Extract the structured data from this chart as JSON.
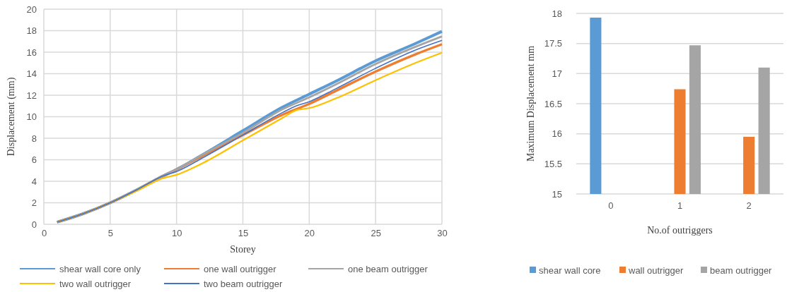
{
  "chart_data": [
    {
      "type": "line",
      "xlabel": "Storey",
      "ylabel": "Displacement (mm)",
      "xlim": [
        0,
        30
      ],
      "xticks": [
        0,
        5,
        10,
        15,
        20,
        25,
        30
      ],
      "ylim": [
        0,
        20
      ],
      "yticks": [
        0,
        2,
        4,
        6,
        8,
        10,
        12,
        14,
        16,
        18,
        20
      ],
      "grid": true,
      "legend": "bottom",
      "line_style": "solid",
      "marker": "none",
      "series": [
        {
          "name": "shear wall core only",
          "color": "#5b9bd5",
          "x": [
            1,
            3,
            5,
            7,
            9,
            10,
            12,
            15,
            18,
            20,
            22,
            25,
            28,
            30
          ],
          "values": [
            0.2,
            1.0,
            2.0,
            3.2,
            4.5,
            5.1,
            6.5,
            8.7,
            10.9,
            12.1,
            13.3,
            15.2,
            16.8,
            17.93
          ]
        },
        {
          "name": "one wall outrigger",
          "color": "#ed7d31",
          "x": [
            1,
            3,
            5,
            7,
            9,
            10,
            12,
            15,
            18,
            20,
            22,
            25,
            28,
            30
          ],
          "values": [
            0.2,
            1.0,
            2.0,
            3.2,
            4.5,
            5.1,
            6.4,
            8.3,
            10.2,
            11.2,
            12.4,
            14.2,
            15.8,
            16.74
          ]
        },
        {
          "name": "one beam outrigger",
          "color": "#a5a5a5",
          "x": [
            1,
            3,
            5,
            7,
            9,
            10,
            12,
            15,
            18,
            20,
            22,
            25,
            28,
            30
          ],
          "values": [
            0.2,
            1.0,
            2.0,
            3.2,
            4.5,
            5.1,
            6.5,
            8.5,
            10.7,
            11.8,
            13.0,
            14.9,
            16.5,
            17.47
          ]
        },
        {
          "name": "two wall outrigger",
          "color": "#ffc000",
          "x": [
            1,
            3,
            5,
            7,
            9,
            10,
            12,
            15,
            18,
            19,
            20,
            22,
            25,
            28,
            30
          ],
          "values": [
            0.2,
            1.0,
            2.0,
            3.1,
            4.3,
            4.6,
            5.7,
            7.8,
            9.9,
            10.6,
            10.8,
            11.7,
            13.4,
            15.0,
            15.95
          ]
        },
        {
          "name": "two beam outrigger",
          "color": "#4472c4",
          "x": [
            1,
            3,
            5,
            7,
            9,
            10,
            12,
            15,
            18,
            19,
            20,
            22,
            25,
            28,
            30
          ],
          "values": [
            0.2,
            1.0,
            2.0,
            3.2,
            4.5,
            4.9,
            6.2,
            8.3,
            10.4,
            11.0,
            11.4,
            12.6,
            14.5,
            16.2,
            17.1
          ]
        }
      ]
    },
    {
      "type": "bar",
      "xlabel": "No.of outriggers",
      "ylabel": "Maximum Displacement mm",
      "categories": [
        "0",
        "1",
        "2"
      ],
      "ylim": [
        15,
        18
      ],
      "yticks": [
        15,
        15.5,
        16,
        16.5,
        17,
        17.5,
        18
      ],
      "grid": "y",
      "legend": "bottom",
      "series": [
        {
          "name": "shear wall core",
          "color": "#5b9bd5",
          "values": [
            17.93,
            null,
            null
          ]
        },
        {
          "name": "wall outrigger",
          "color": "#ed7d31",
          "values": [
            null,
            16.74,
            15.95
          ]
        },
        {
          "name": "beam outrigger",
          "color": "#a5a5a5",
          "values": [
            null,
            17.47,
            17.1
          ]
        }
      ]
    }
  ]
}
